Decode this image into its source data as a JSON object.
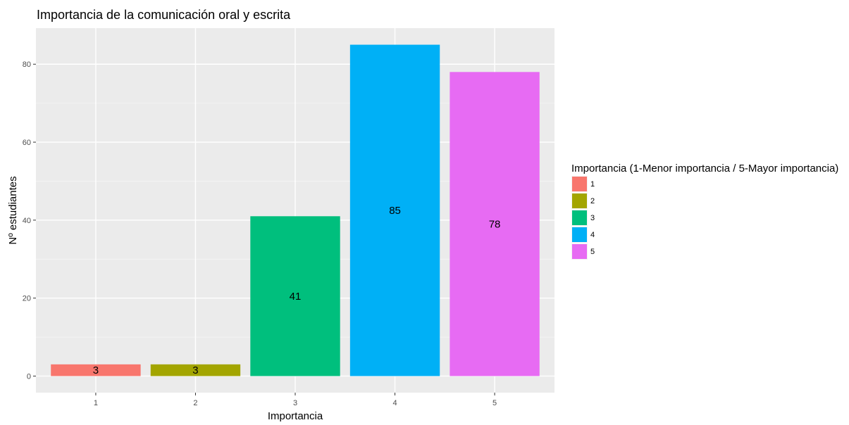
{
  "chart_data": {
    "type": "bar",
    "title": "Importancia de la comunicación oral y escrita",
    "xlabel": "Importancia",
    "ylabel": "Nº estudiantes",
    "categories": [
      "1",
      "2",
      "3",
      "4",
      "5"
    ],
    "values": [
      3,
      3,
      41,
      85,
      78
    ],
    "data_labels": [
      "3",
      "3",
      "41",
      "85",
      "78"
    ],
    "colors": [
      "#F8766D",
      "#A3A500",
      "#00BF7D",
      "#00B0F6",
      "#E76BF3"
    ],
    "ylim": [
      -4.25,
      89.25
    ],
    "yticks": [
      0,
      20,
      40,
      60,
      80
    ],
    "ytick_labels": [
      "0",
      "20",
      "40",
      "60",
      "80"
    ],
    "grid": true,
    "panel_background": "#EBEBEB",
    "legend": {
      "title": "Importancia (1-Menor importancia / 5-Mayor importancia)",
      "position": "right",
      "items": [
        "1",
        "2",
        "3",
        "4",
        "5"
      ]
    }
  }
}
